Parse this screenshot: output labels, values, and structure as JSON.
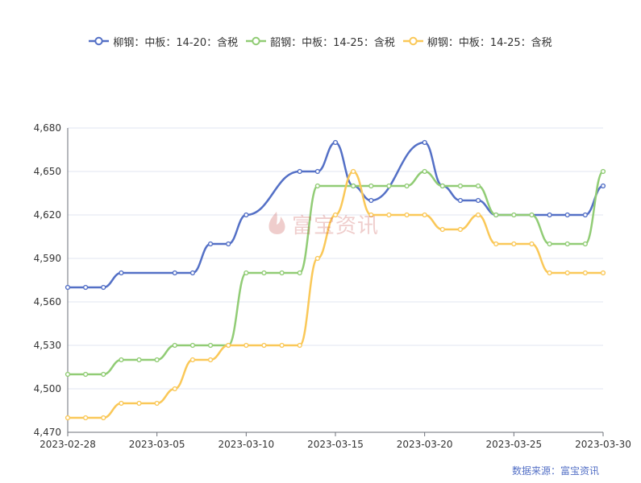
{
  "chart_data": {
    "type": "line",
    "title": "",
    "xlabel": "",
    "ylabel": "",
    "ylim": [
      4470,
      4680
    ],
    "y_ticks": [
      4470,
      4500,
      4530,
      4560,
      4590,
      4620,
      4650,
      4680
    ],
    "y_tick_labels": [
      "4,470",
      "4,500",
      "4,530",
      "4,560",
      "4,590",
      "4,620",
      "4,650",
      "4,680"
    ],
    "x_tick_labels": [
      "2023-02-28",
      "2023-03-05",
      "2023-03-10",
      "2023-03-15",
      "2023-03-20",
      "2023-03-25",
      "2023-03-30"
    ],
    "x_range": [
      "2023-02-28",
      "2023-03-30"
    ],
    "legend_position": "top-center",
    "grid": true,
    "series": [
      {
        "name": "柳钢：中板：14-20：含税",
        "color": "#5470c6",
        "points": [
          [
            "2023-02-28",
            4570
          ],
          [
            "2023-03-01",
            4570
          ],
          [
            "2023-03-02",
            4570
          ],
          [
            "2023-03-03",
            4580
          ],
          [
            "2023-03-06",
            4580
          ],
          [
            "2023-03-07",
            4580
          ],
          [
            "2023-03-08",
            4600
          ],
          [
            "2023-03-09",
            4600
          ],
          [
            "2023-03-10",
            4620
          ],
          [
            "2023-03-13",
            4650
          ],
          [
            "2023-03-14",
            4650
          ],
          [
            "2023-03-15",
            4670
          ],
          [
            "2023-03-16",
            4640
          ],
          [
            "2023-03-17",
            4630
          ],
          [
            "2023-03-20",
            4670
          ],
          [
            "2023-03-21",
            4640
          ],
          [
            "2023-03-22",
            4630
          ],
          [
            "2023-03-23",
            4630
          ],
          [
            "2023-03-24",
            4620
          ],
          [
            "2023-03-27",
            4620
          ],
          [
            "2023-03-28",
            4620
          ],
          [
            "2023-03-29",
            4620
          ],
          [
            "2023-03-30",
            4640
          ]
        ]
      },
      {
        "name": "韶钢：中板：14-25：含税",
        "color": "#91cc75",
        "points": [
          [
            "2023-02-28",
            4510
          ],
          [
            "2023-03-01",
            4510
          ],
          [
            "2023-03-02",
            4510
          ],
          [
            "2023-03-03",
            4520
          ],
          [
            "2023-03-04",
            4520
          ],
          [
            "2023-03-05",
            4520
          ],
          [
            "2023-03-06",
            4530
          ],
          [
            "2023-03-07",
            4530
          ],
          [
            "2023-03-08",
            4530
          ],
          [
            "2023-03-09",
            4530
          ],
          [
            "2023-03-10",
            4580
          ],
          [
            "2023-03-11",
            4580
          ],
          [
            "2023-03-12",
            4580
          ],
          [
            "2023-03-13",
            4580
          ],
          [
            "2023-03-14",
            4640
          ],
          [
            "2023-03-16",
            4640
          ],
          [
            "2023-03-17",
            4640
          ],
          [
            "2023-03-18",
            4640
          ],
          [
            "2023-03-19",
            4640
          ],
          [
            "2023-03-20",
            4650
          ],
          [
            "2023-03-21",
            4640
          ],
          [
            "2023-03-22",
            4640
          ],
          [
            "2023-03-23",
            4640
          ],
          [
            "2023-03-24",
            4620
          ],
          [
            "2023-03-25",
            4620
          ],
          [
            "2023-03-26",
            4620
          ],
          [
            "2023-03-27",
            4600
          ],
          [
            "2023-03-28",
            4600
          ],
          [
            "2023-03-29",
            4600
          ],
          [
            "2023-03-30",
            4650
          ]
        ]
      },
      {
        "name": "柳钢：中板：14-25：含税",
        "color": "#fac858",
        "points": [
          [
            "2023-02-28",
            4480
          ],
          [
            "2023-03-01",
            4480
          ],
          [
            "2023-03-02",
            4480
          ],
          [
            "2023-03-03",
            4490
          ],
          [
            "2023-03-04",
            4490
          ],
          [
            "2023-03-05",
            4490
          ],
          [
            "2023-03-06",
            4500
          ],
          [
            "2023-03-07",
            4520
          ],
          [
            "2023-03-08",
            4520
          ],
          [
            "2023-03-09",
            4530
          ],
          [
            "2023-03-10",
            4530
          ],
          [
            "2023-03-11",
            4530
          ],
          [
            "2023-03-12",
            4530
          ],
          [
            "2023-03-13",
            4530
          ],
          [
            "2023-03-14",
            4590
          ],
          [
            "2023-03-15",
            4620
          ],
          [
            "2023-03-16",
            4650
          ],
          [
            "2023-03-17",
            4620
          ],
          [
            "2023-03-18",
            4620
          ],
          [
            "2023-03-19",
            4620
          ],
          [
            "2023-03-20",
            4620
          ],
          [
            "2023-03-21",
            4610
          ],
          [
            "2023-03-22",
            4610
          ],
          [
            "2023-03-23",
            4620
          ],
          [
            "2023-03-24",
            4600
          ],
          [
            "2023-03-25",
            4600
          ],
          [
            "2023-03-26",
            4600
          ],
          [
            "2023-03-27",
            4580
          ],
          [
            "2023-03-28",
            4580
          ],
          [
            "2023-03-29",
            4580
          ],
          [
            "2023-03-30",
            4580
          ]
        ]
      }
    ]
  },
  "watermark": {
    "text": "富宝资讯"
  },
  "source": {
    "text": "数据来源：富宝资讯"
  }
}
